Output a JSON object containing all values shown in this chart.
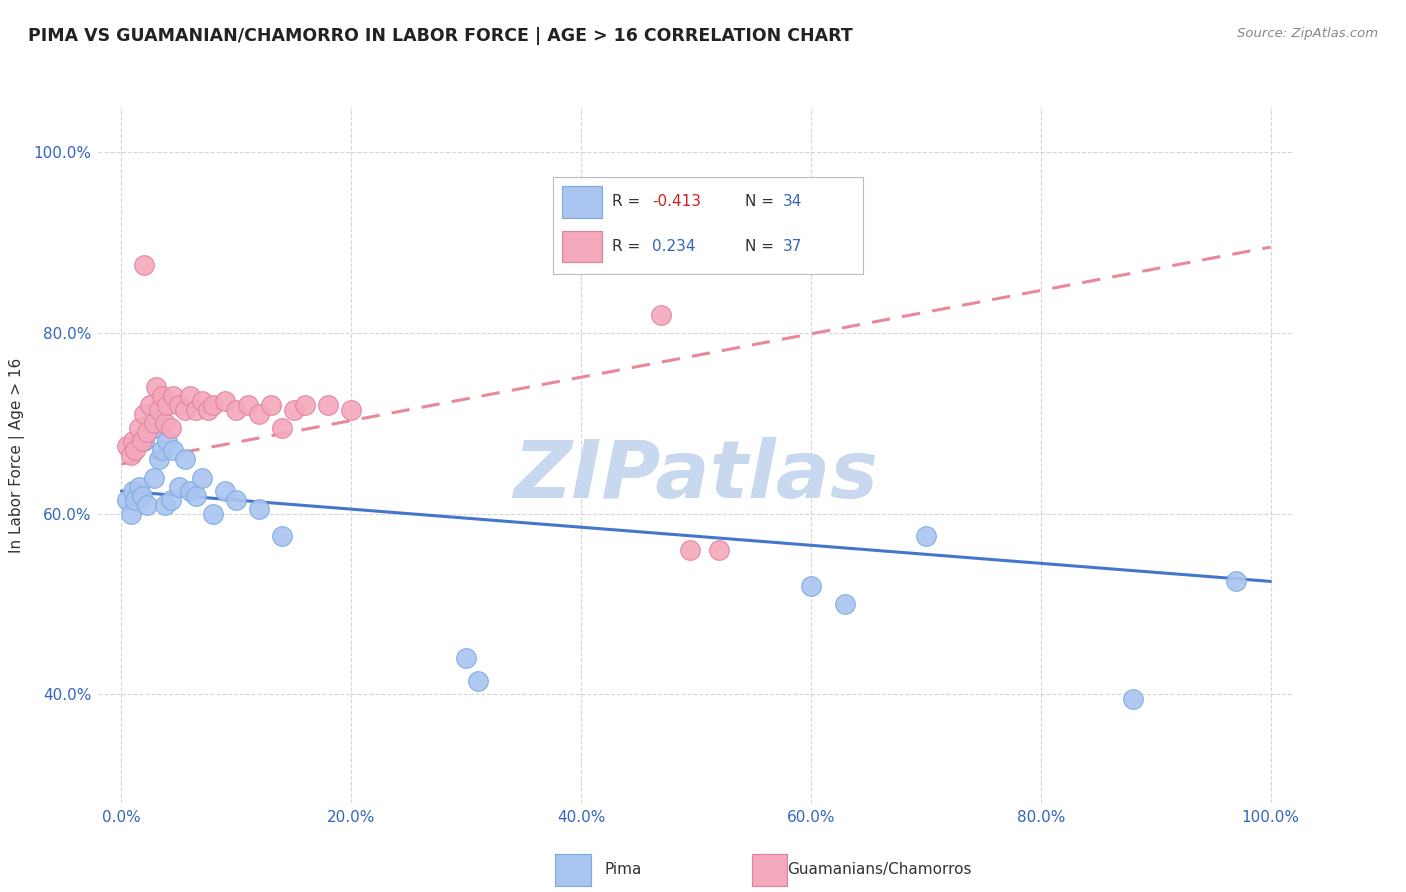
{
  "title": "PIMA VS GUAMANIAN/CHAMORRO IN LABOR FORCE | AGE > 16 CORRELATION CHART",
  "source_text": "Source: ZipAtlas.com",
  "ylabel": "In Labor Force | Age > 16",
  "xlim": [
    -0.02,
    1.02
  ],
  "ylim": [
    0.28,
    1.05
  ],
  "xticks": [
    0.0,
    0.2,
    0.4,
    0.6,
    0.8,
    1.0
  ],
  "xticklabels": [
    "0.0%",
    "20.0%",
    "40.0%",
    "60.0%",
    "80.0%",
    "100.0%"
  ],
  "yticks": [
    0.4,
    0.6,
    0.8,
    1.0
  ],
  "yticklabels": [
    "40.0%",
    "60.0%",
    "80.0%",
    "100.0%"
  ],
  "pima_color": "#aac4f0",
  "pima_edge_color": "#7aaae0",
  "chamorro_color": "#f4a8bc",
  "chamorro_edge_color": "#e080a0",
  "pima_line_color": "#4477cc",
  "chamorro_line_color": "#e88898",
  "grid_color": "#cccccc",
  "background_color": "#ffffff",
  "watermark_text": "ZIPatlas",
  "watermark_color": "#c8d8ee",
  "pima_x": [
    0.005,
    0.008,
    0.01,
    0.012,
    0.015,
    0.018,
    0.02,
    0.022,
    0.025,
    0.028,
    0.03,
    0.033,
    0.035,
    0.038,
    0.04,
    0.043,
    0.045,
    0.05,
    0.055,
    0.06,
    0.065,
    0.07,
    0.08,
    0.09,
    0.1,
    0.12,
    0.14,
    0.3,
    0.31,
    0.6,
    0.63,
    0.7,
    0.88,
    0.97
  ],
  "pima_y": [
    0.615,
    0.6,
    0.625,
    0.615,
    0.63,
    0.62,
    0.68,
    0.61,
    0.7,
    0.64,
    0.695,
    0.66,
    0.67,
    0.61,
    0.68,
    0.615,
    0.67,
    0.63,
    0.66,
    0.625,
    0.62,
    0.64,
    0.6,
    0.625,
    0.615,
    0.605,
    0.575,
    0.44,
    0.415,
    0.52,
    0.5,
    0.575,
    0.395,
    0.525
  ],
  "chamorro_x": [
    0.005,
    0.008,
    0.01,
    0.012,
    0.015,
    0.018,
    0.02,
    0.022,
    0.025,
    0.028,
    0.03,
    0.033,
    0.035,
    0.038,
    0.04,
    0.043,
    0.045,
    0.05,
    0.055,
    0.06,
    0.065,
    0.07,
    0.075,
    0.08,
    0.09,
    0.1,
    0.11,
    0.12,
    0.13,
    0.14,
    0.15,
    0.16,
    0.18,
    0.2,
    0.02,
    0.47,
    0.495,
    0.52
  ],
  "chamorro_y": [
    0.675,
    0.665,
    0.68,
    0.67,
    0.695,
    0.68,
    0.71,
    0.69,
    0.72,
    0.7,
    0.74,
    0.715,
    0.73,
    0.7,
    0.72,
    0.695,
    0.73,
    0.72,
    0.715,
    0.73,
    0.715,
    0.725,
    0.715,
    0.72,
    0.725,
    0.715,
    0.72,
    0.71,
    0.72,
    0.695,
    0.715,
    0.72,
    0.72,
    0.715,
    0.875,
    0.82,
    0.56,
    0.56
  ],
  "pima_trendline_x": [
    0.0,
    1.0
  ],
  "pima_trendline_y": [
    0.625,
    0.525
  ],
  "chamorro_trendline_x": [
    0.0,
    1.0
  ],
  "chamorro_trendline_y": [
    0.655,
    0.895
  ]
}
